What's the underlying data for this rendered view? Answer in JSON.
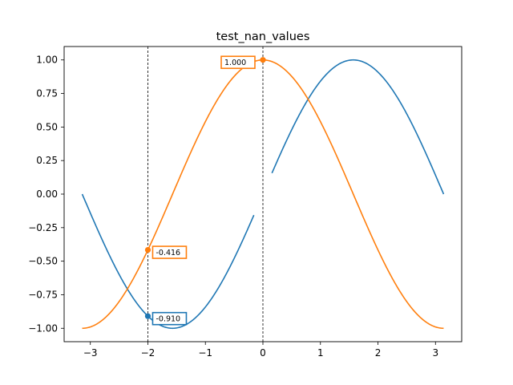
{
  "chart_data": {
    "type": "line",
    "title": "test_nan_values",
    "xlabel": "",
    "ylabel": "",
    "xlim": [
      -3.4558,
      3.4558
    ],
    "ylim": [
      -1.1,
      1.1
    ],
    "grid": false,
    "x_ticks": [
      -3,
      -2,
      -1,
      0,
      1,
      2,
      3
    ],
    "x_tick_labels": [
      "−3",
      "−2",
      "−1",
      "0",
      "1",
      "2",
      "3"
    ],
    "y_ticks": [
      1.0,
      0.75,
      0.5,
      0.25,
      0.0,
      -0.25,
      -0.5,
      -0.75,
      -1.0
    ],
    "y_tick_labels": [
      "1.00",
      "0.75",
      "0.50",
      "0.25",
      "0.00",
      "−0.25",
      "−0.50",
      "−0.75",
      "−1.00"
    ],
    "series": [
      {
        "function": "sin(x)",
        "color": "#1f77b4",
        "x_range": [
          -3.14159,
          3.14159
        ],
        "nan_gap": [
          -0.15,
          0.15
        ]
      },
      {
        "function": "cos(x)",
        "color": "#ff7f0e",
        "x_range": [
          -3.14159,
          3.14159
        ]
      }
    ],
    "vertical_lines": [
      -2,
      0
    ],
    "annotations": [
      {
        "x": -2,
        "y": -0.91,
        "text": "-0.910",
        "color": "#1f77b4",
        "side": "right"
      },
      {
        "x": -2,
        "y": -0.416,
        "text": "-0.416",
        "color": "#ff7f0e",
        "side": "right"
      },
      {
        "x": 0,
        "y": 1.0,
        "text": "1.000",
        "color": "#ff7f0e",
        "side": "left"
      }
    ]
  }
}
